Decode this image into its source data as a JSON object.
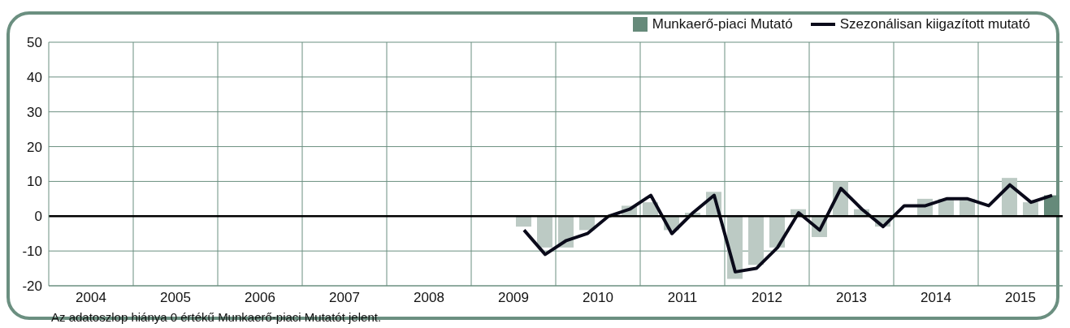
{
  "chart_data": {
    "type": "bar",
    "x": [
      2009.125,
      2009.375,
      2009.625,
      2009.875,
      2010.125,
      2010.375,
      2010.625,
      2010.875,
      2011.125,
      2011.375,
      2011.625,
      2011.875,
      2012.125,
      2012.375,
      2012.625,
      2012.875,
      2013.125,
      2013.375,
      2013.625,
      2013.875,
      2014.125,
      2014.375,
      2014.625,
      2014.875,
      2015.125,
      2015.375
    ],
    "series": [
      {
        "name": "Munkaerő-piaci Mutató",
        "color": "#668a7a",
        "colors": [
          "#bccac4",
          "#bccac4",
          "#bccac4",
          "#bccac4",
          "#bccac4",
          "#bccac4",
          "#bccac4",
          "#bccac4",
          "#bccac4",
          "#bccac4",
          "#bccac4",
          "#bccac4",
          "#bccac4",
          "#bccac4",
          "#bccac4",
          "#bccac4",
          "#bccac4",
          "#bccac4",
          "#bccac4",
          "#bccac4",
          "#bccac4",
          "#bccac4",
          "#bccac4",
          "#bccac4",
          "#bccac4",
          "#668a7a"
        ],
        "values": [
          -3,
          -9,
          -9,
          -4,
          0,
          3,
          4,
          -4,
          1,
          7,
          -18,
          -14,
          -9,
          2,
          -6,
          10,
          2,
          -3,
          0,
          5,
          5,
          5,
          0,
          11,
          4,
          6
        ]
      },
      {
        "type": "line",
        "name": "Szezonálisan kiigazított mutató",
        "color": "#0a0a1a",
        "values": [
          -4,
          -11,
          -7,
          -5,
          0,
          2,
          6,
          -5,
          1,
          6,
          -16,
          -15,
          -9,
          1,
          -4,
          8,
          2,
          -3,
          3,
          3,
          5,
          5,
          3,
          9,
          4,
          6
        ]
      }
    ],
    "xlim": [
      2003.5,
      2015.5
    ],
    "xticks": [
      2004,
      {
        "value": 2004.5,
        "label": null
      },
      2005,
      {
        "value": 2005.5,
        "label": null
      },
      2006,
      {
        "value": 2006.5,
        "label": null
      },
      2007,
      {
        "value": 2007.5,
        "label": null
      },
      2008,
      {
        "value": 2008.5,
        "label": null
      },
      2009,
      {
        "value": 2009.5,
        "label": null
      },
      2010,
      {
        "value": 2010.5,
        "label": null
      },
      2011,
      {
        "value": 2011.5,
        "label": null
      },
      2012,
      {
        "value": 2012.5,
        "label": null
      },
      2013,
      {
        "value": 2013.5,
        "label": null
      },
      2014,
      {
        "value": 2014.5,
        "label": null
      },
      2015
    ],
    "ylim": [
      -20,
      50
    ],
    "yticks": [
      -20,
      -10,
      0,
      10,
      20,
      30,
      40,
      50
    ],
    "grid": true,
    "legend": "top right",
    "marker": "none",
    "line_style": "solid",
    "ref_lines": [
      {
        "axis": "y",
        "value": 0,
        "color": "#000000"
      }
    ],
    "annotations": [
      "Az adatoszlop hiánya 0 értékű Munkaerő-piaci Mutatót jelent."
    ]
  }
}
